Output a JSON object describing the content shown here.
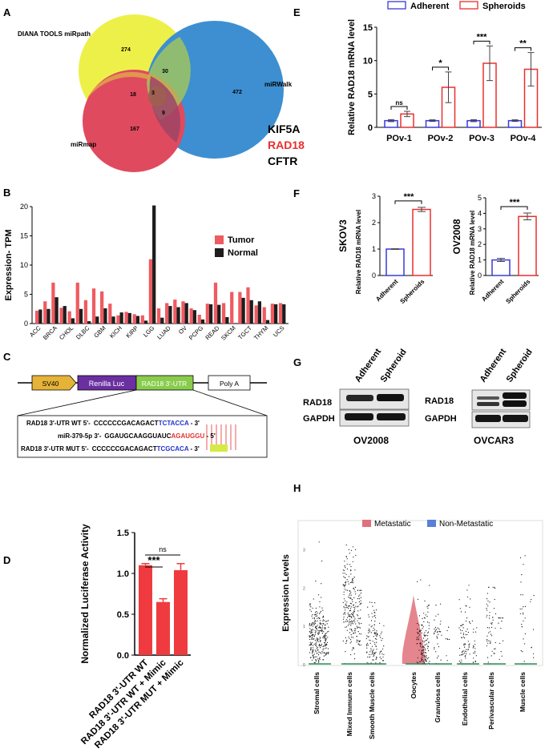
{
  "panels": {
    "a": "A",
    "b": "B",
    "c": "C",
    "d": "D",
    "e": "E",
    "f": "F",
    "g": "G",
    "h": "H"
  },
  "venn": {
    "sets": [
      "DIANA TOOLS miRpath",
      "miRWalk",
      "miRmap"
    ],
    "counts": {
      "path_only": "274",
      "path_walk": "30",
      "walk_only": "472",
      "path_map": "18",
      "all3": "3",
      "map_walk": "9",
      "map_only": "167"
    },
    "genes": [
      "KIF5A",
      "RAD18",
      "CFTR"
    ],
    "colors": {
      "path": "#eef04a",
      "walk": "#3d8fd1",
      "map": "#e04a5e",
      "highlight": "#e8302e"
    }
  },
  "panel_e": {
    "legend": [
      "Adherent",
      "Spheroids"
    ],
    "sig": [
      "ns",
      "*",
      "***",
      "**"
    ]
  },
  "panel_f": {
    "sig": [
      "***",
      "***"
    ]
  },
  "panel_b": {
    "legend": [
      "Tumor",
      "Normal"
    ]
  },
  "construct": {
    "boxes": [
      "SV40",
      "Renilla Luc",
      "RAD18 3'-UTR",
      "Poly A"
    ],
    "seq_labels": [
      "RAD18 3'-UTR WT 5'-",
      "miR-379-5p 3'-",
      "RAD18 3'-UTR MUT 5'-"
    ],
    "wt": {
      "a": "CCCCCCGACAGACT",
      "b": "TCTACCA",
      "c": " - 3'"
    },
    "mir": {
      "a": "GGAUGCAAGGUAUC",
      "b": "AGAUGGU",
      "c": " - 5'"
    },
    "mut": {
      "a": "CCCCCCGACAGACT",
      "b": "TC",
      "c": "GCA",
      "d": "CA",
      "e": " - 3'"
    }
  },
  "panel_g": {
    "cols": [
      "Adherent",
      "Spheroid"
    ],
    "rows": [
      "RAD18",
      "GAPDH"
    ],
    "captions": [
      "OV2008",
      "OVCAR3"
    ]
  },
  "panel_d": {
    "sig": [
      "***",
      "ns"
    ]
  },
  "panel_h": {
    "legend": [
      "Metastatic",
      "Non-Metastatic"
    ],
    "ylabel": "Expression Levels",
    "yticks": [
      "0",
      "1",
      "2",
      "3"
    ],
    "cells": [
      "Stromal cells",
      "Mixed Immune cells",
      "Smooth Muscle cells",
      "Oocytes",
      "Granulosa cells",
      "Endothelial cells",
      "Perivascular cells",
      "Muscle cells"
    ],
    "colors": {
      "met": "#e0707a",
      "nonmet": "#5b7fd6"
    }
  },
  "chart_data": [
    {
      "id": "B",
      "type": "bar",
      "ylabel": "Expression- TPM",
      "ylim": [
        0,
        20
      ],
      "yticks": [
        0,
        5,
        10,
        15,
        20
      ],
      "categories": [
        "ACC",
        "BLCA",
        "BRCA",
        "CESC",
        "CHOL",
        "COAD",
        "DLBC",
        "ESCA",
        "GBM",
        "HNSC",
        "KICH",
        "KIRC",
        "KIRP",
        "LAML",
        "LGG",
        "LIHC",
        "LUAD",
        "LUSC",
        "OV",
        "PAAD",
        "PCPG",
        "PRAD",
        "READ",
        "SARC",
        "SKCM",
        "STAD",
        "TGCT",
        "THCA",
        "THYM",
        "UCEC",
        "UCS"
      ],
      "tick_labels": [
        "ACC",
        "BRCA",
        "CHOL",
        "DLBC",
        "GBM",
        "KICH",
        "KIRP",
        "LGG",
        "LUAD",
        "OV",
        "PCPG",
        "READ",
        "SKCM",
        "TGCT",
        "THYM",
        "UCS"
      ],
      "tick_index": [
        0,
        2,
        4,
        6,
        8,
        10,
        12,
        14,
        16,
        18,
        20,
        22,
        24,
        26,
        28,
        30
      ],
      "series": [
        {
          "name": "Tumor",
          "color": "#ef5b61",
          "values": [
            2.2,
            3.8,
            7,
            2.7,
            2.1,
            7,
            4,
            6,
            5.5,
            3.4,
            1.4,
            2,
            1.6,
            1.4,
            11,
            2.6,
            3.5,
            4.1,
            3.8,
            2.6,
            1.5,
            3.4,
            7,
            3.5,
            5.4,
            5.4,
            6.2,
            3.1,
            2.8,
            3.4,
            3.5
          ]
        },
        {
          "name": "Normal",
          "color": "#1d1d1d",
          "values": [
            2.4,
            2.5,
            4.5,
            3,
            0.9,
            2.5,
            0.4,
            1.2,
            2.6,
            1.2,
            1.9,
            1.8,
            1.3,
            0.5,
            20.2,
            1,
            3,
            2.8,
            3.5,
            2.3,
            0.7,
            3.3,
            3.2,
            1.1,
            0,
            4.4,
            4,
            3.8,
            0.6,
            3.3,
            3.3
          ]
        }
      ]
    },
    {
      "id": "E",
      "type": "bar",
      "ylabel": "Relative RAD18 mRNA level",
      "ylim": [
        0,
        15
      ],
      "yticks": [
        0,
        5,
        10,
        15
      ],
      "categories": [
        "POv-1",
        "POv-2",
        "POv-3",
        "POv-4"
      ],
      "series": [
        {
          "name": "Adherent",
          "color": "#3a3ad8",
          "values": [
            1,
            1,
            1,
            1
          ],
          "error": [
            0.15,
            0.12,
            0.15,
            0.12
          ]
        },
        {
          "name": "Spheroids",
          "color": "#e8302e",
          "values": [
            2,
            6,
            9.6,
            8.7
          ],
          "error": [
            0.4,
            2.3,
            2.6,
            2.5
          ]
        }
      ]
    },
    {
      "id": "F1",
      "type": "bar",
      "title": "SKOV3",
      "ylabel": "Relative RAD18 mRNA level",
      "ylim": [
        0,
        3
      ],
      "yticks": [
        0,
        1,
        2,
        3
      ],
      "categories": [
        "Adherent",
        "Spheroids"
      ],
      "values": [
        1,
        2.5
      ],
      "error": [
        0.01,
        0.08
      ]
    },
    {
      "id": "F2",
      "type": "bar",
      "title": "OV2008",
      "ylabel": "Relative RAD18 mRNA level",
      "ylim": [
        0,
        5
      ],
      "yticks": [
        0,
        1,
        2,
        3,
        4,
        5
      ],
      "categories": [
        "Adherent",
        "Spheroids"
      ],
      "values": [
        1,
        3.8
      ],
      "error": [
        0.1,
        0.22
      ]
    },
    {
      "id": "D",
      "type": "bar",
      "ylabel": "Normalized Luciferase Activity",
      "ylim": [
        0,
        1.5
      ],
      "yticks": [
        0.0,
        0.5,
        1.0,
        1.5
      ],
      "tick_text": [
        "0.0",
        "0.5",
        "1.0",
        "1.5"
      ],
      "categories": [
        "RAD18 3'-UTR WT",
        "RAD18 3'-UTR WT + Mimic",
        "RAD18 3'-UTR MUT + Mimic"
      ],
      "values": [
        1.1,
        0.65,
        1.04
      ],
      "error": [
        0.02,
        0.04,
        0.08
      ]
    }
  ]
}
